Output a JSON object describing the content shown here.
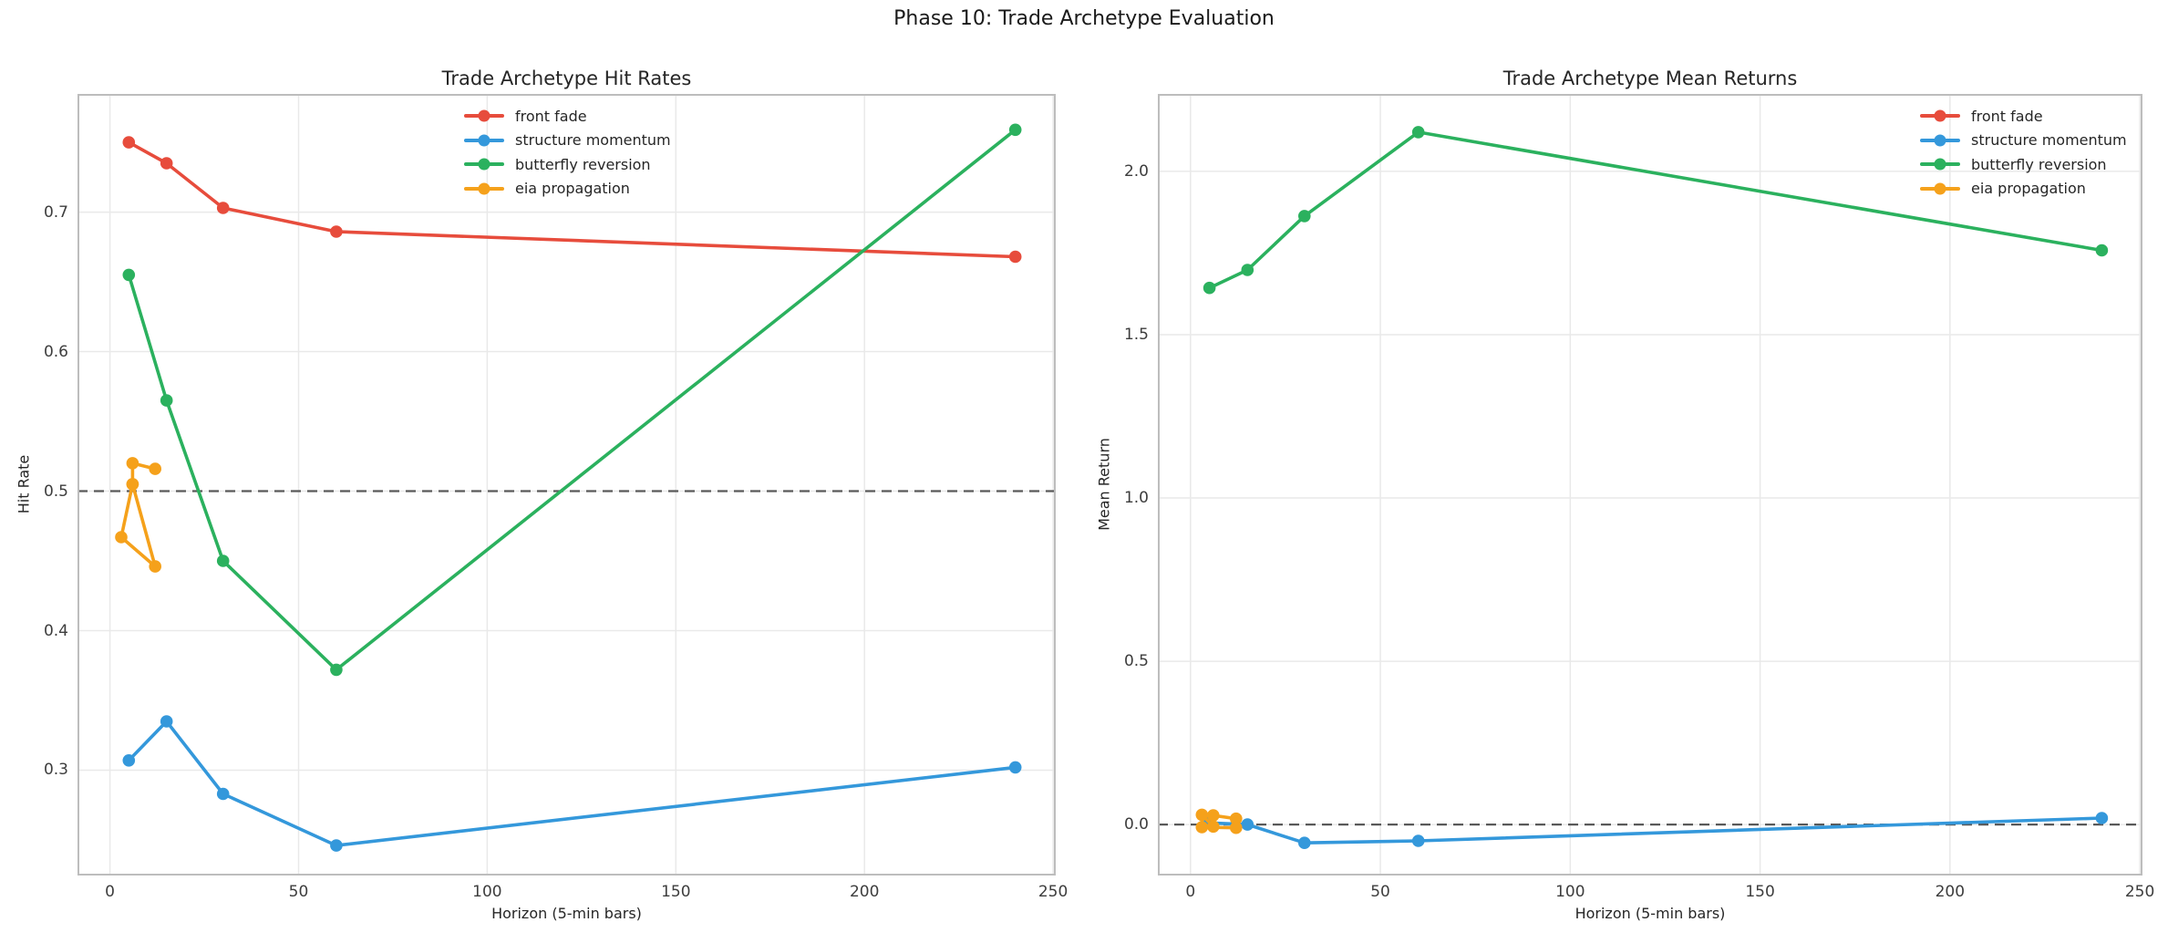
{
  "figure": {
    "suptitle": "Phase 10: Trade Archetype Evaluation"
  },
  "palette": {
    "front_fade": "#e74c3c",
    "structure_momentum": "#3498db",
    "butterfly_reversion": "#2bb15e",
    "eia_propagation": "#f5a11b",
    "refline": "#595959",
    "grid": "#e9e9e9",
    "spine": "#bdbdbd"
  },
  "legend": {
    "entries": [
      {
        "label": "front fade",
        "color": "#e74c3c"
      },
      {
        "label": "structure momentum",
        "color": "#3498db"
      },
      {
        "label": "butterfly reversion",
        "color": "#2bb15e"
      },
      {
        "label": "eia propagation",
        "color": "#f5a11b"
      }
    ]
  },
  "chart_data": [
    {
      "type": "line",
      "id": "hit-rates",
      "title": "Trade Archetype Hit Rates",
      "xlabel": "Horizon (5-min bars)",
      "ylabel": "Hit Rate",
      "xlim": [
        -8.6,
        250.7
      ],
      "ylim": [
        0.2245,
        0.7847
      ],
      "xticks": [
        0,
        50,
        100,
        150,
        200,
        250
      ],
      "xtick_labels": [
        "0",
        "50",
        "100",
        "150",
        "200",
        "250"
      ],
      "yticks": [
        0.3,
        0.4,
        0.5,
        0.6,
        0.7
      ],
      "ytick_labels": [
        "0.3",
        "0.4",
        "0.5",
        "0.6",
        "0.7"
      ],
      "grid": true,
      "refline": {
        "y": 0.5,
        "style": "dashed",
        "color": "#595959"
      },
      "legend_position": "upper-center",
      "series": [
        {
          "name": "front fade",
          "color": "#e74c3c",
          "points": [
            [
              5,
              0.75
            ],
            [
              15,
              0.735
            ],
            [
              30,
              0.703
            ],
            [
              60,
              0.686
            ],
            [
              240,
              0.668
            ]
          ]
        },
        {
          "name": "structure momentum",
          "color": "#3498db",
          "points": [
            [
              5,
              0.307
            ],
            [
              15,
              0.335
            ],
            [
              30,
              0.283
            ],
            [
              60,
              0.246
            ],
            [
              240,
              0.302
            ]
          ]
        },
        {
          "name": "butterfly reversion",
          "color": "#2bb15e",
          "points": [
            [
              5,
              0.655
            ],
            [
              15,
              0.565
            ],
            [
              30,
              0.45
            ],
            [
              60,
              0.372
            ],
            [
              240,
              0.759
            ]
          ]
        },
        {
          "name": "eia propagation",
          "color": "#f5a11b",
          "points": [
            [
              12,
              0.516
            ],
            [
              6,
              0.52
            ],
            [
              6,
              0.505
            ],
            [
              3,
              0.467
            ],
            [
              12,
              0.446
            ],
            [
              6,
              0.505
            ]
          ]
        }
      ]
    },
    {
      "type": "line",
      "id": "mean-returns",
      "title": "Trade Archetype Mean Returns",
      "xlabel": "Horizon (5-min bars)",
      "ylabel": "Mean Return",
      "xlim": [
        -8.6,
        250.7
      ],
      "ylim": [
        -0.156,
        2.237
      ],
      "xticks": [
        0,
        50,
        100,
        150,
        200,
        250
      ],
      "xtick_labels": [
        "0",
        "50",
        "100",
        "150",
        "200",
        "250"
      ],
      "yticks": [
        0.0,
        0.5,
        1.0,
        1.5,
        2.0
      ],
      "ytick_labels": [
        "0.0",
        "0.5",
        "1.0",
        "1.5",
        "2.0"
      ],
      "grid": true,
      "refline": {
        "y": 0.0,
        "style": "dashed",
        "color": "#595959"
      },
      "legend_position": "upper-right",
      "series": [
        {
          "name": "front fade",
          "color": "#e74c3c",
          "points": []
        },
        {
          "name": "structure momentum",
          "color": "#3498db",
          "points": [
            [
              5,
              0.005
            ],
            [
              15,
              0.0
            ],
            [
              30,
              -0.056
            ],
            [
              60,
              -0.05
            ],
            [
              240,
              0.02
            ]
          ]
        },
        {
          "name": "butterfly reversion",
          "color": "#2bb15e",
          "points": [
            [
              5,
              1.643
            ],
            [
              15,
              1.698
            ],
            [
              30,
              1.863
            ],
            [
              60,
              2.12
            ],
            [
              240,
              1.758
            ]
          ]
        },
        {
          "name": "eia propagation",
          "color": "#f5a11b",
          "points": [
            [
              12,
              0.018
            ],
            [
              6,
              0.028
            ],
            [
              6,
              -0.006
            ],
            [
              3,
              0.03
            ],
            [
              3,
              -0.008
            ],
            [
              12,
              -0.01
            ]
          ]
        }
      ]
    }
  ]
}
